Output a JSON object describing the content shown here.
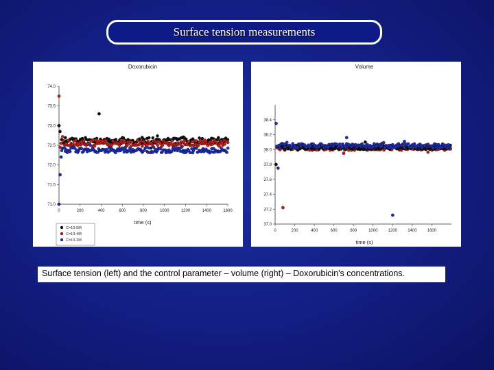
{
  "slide": {
    "title": "Surface tension measurements",
    "caption": "Surface tension (left) and the control parameter – volume (right) – Doxorubicin's concentrations."
  },
  "colors": {
    "black": "#111111",
    "red": "#c0201c",
    "blue": "#1f2fb0"
  },
  "chart_data": [
    {
      "type": "scatter",
      "title": "Doxorubicin",
      "xlabel": "time (s)",
      "ylabel": "",
      "xlim": [
        0,
        1600
      ],
      "ylim": [
        71.0,
        74.0
      ],
      "x_ticks": [
        0,
        200,
        400,
        600,
        800,
        1000,
        1200,
        1400,
        1600
      ],
      "y_ticks": [
        71.0,
        71.5,
        72.0,
        72.5,
        73.0,
        73.5,
        74.0
      ],
      "x_tick_labels": [
        "0",
        "200",
        "400",
        "600",
        "800",
        "1000",
        "1200",
        "1400",
        "1600"
      ],
      "y_tick_labels": [
        "71.0",
        "71.5",
        "72.0",
        "72.5",
        "73.0",
        "73.5",
        "74.0"
      ],
      "legend": {
        "placement": "bottom-left",
        "entries": [
          "C=10-5M",
          "C=10-4M",
          "C=10-3M"
        ]
      },
      "series": [
        {
          "name": "C=10-5M",
          "color": "black",
          "baseline": 72.62,
          "spread": 0.08,
          "points": [
            [
              0,
              73.0
            ],
            [
              10,
              72.85
            ],
            [
              380,
              73.3
            ]
          ]
        },
        {
          "name": "C=10-4M",
          "color": "red",
          "baseline": 72.55,
          "spread": 0.08,
          "points": [
            [
              0,
              73.75
            ],
            [
              10,
              72.45
            ],
            [
              20,
              72.55
            ]
          ]
        },
        {
          "name": "C=10-3M",
          "color": "blue",
          "baseline": 72.38,
          "spread": 0.07,
          "points": [
            [
              0,
              71.0
            ],
            [
              10,
              71.75
            ],
            [
              20,
              72.2
            ]
          ]
        }
      ]
    },
    {
      "type": "scatter",
      "title": "Volume",
      "xlabel": "time (s)",
      "ylabel": "",
      "xlim": [
        0,
        1800
      ],
      "ylim": [
        37.0,
        38.6
      ],
      "x_ticks": [
        0,
        200,
        400,
        600,
        800,
        1000,
        1200,
        1400,
        1600
      ],
      "y_ticks": [
        37.0,
        37.2,
        37.4,
        37.6,
        37.8,
        38.0,
        38.2,
        38.4
      ],
      "x_tick_labels": [
        "0",
        "200",
        "400",
        "600",
        "800",
        "1000",
        "1200",
        "1400",
        "1600"
      ],
      "y_tick_labels": [
        "37.0",
        "37.2",
        "37.4",
        "37.6",
        "37.8",
        "38.0",
        "38.2",
        "38.4"
      ],
      "series": [
        {
          "name": "C=10-5M",
          "color": "black",
          "baseline": 38.03,
          "spread": 0.03,
          "points": [
            [
              10,
              37.8
            ],
            [
              920,
              38.1
            ]
          ]
        },
        {
          "name": "C=10-4M",
          "color": "red",
          "baseline": 38.02,
          "spread": 0.03,
          "points": [
            [
              80,
              37.22
            ],
            [
              700,
              37.95
            ]
          ]
        },
        {
          "name": "C=10-3M",
          "color": "blue",
          "baseline": 38.05,
          "spread": 0.03,
          "points": [
            [
              10,
              38.35
            ],
            [
              30,
              37.75
            ],
            [
              1200,
              37.12
            ],
            [
              730,
              38.16
            ],
            [
              1320,
              38.11
            ]
          ]
        }
      ]
    }
  ]
}
